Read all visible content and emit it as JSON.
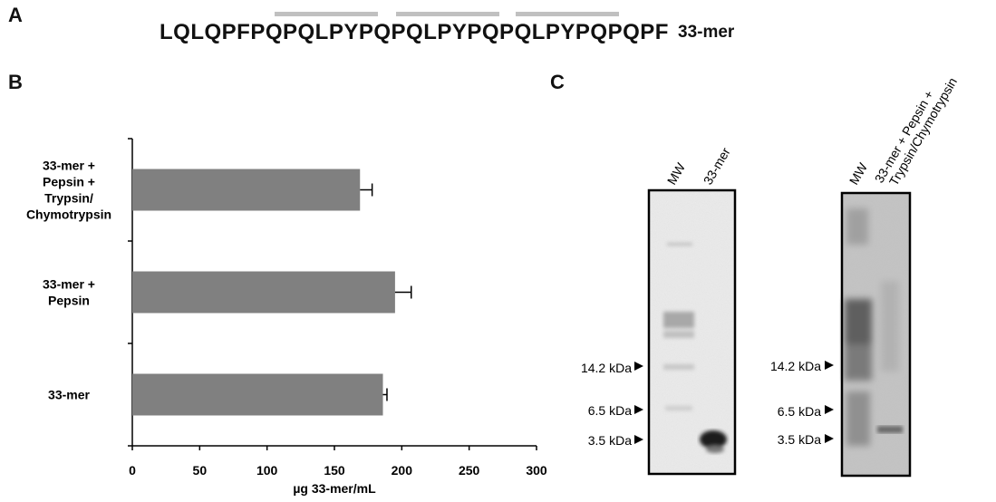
{
  "panel_a": {
    "letter": "A",
    "sequence": "LQLQPFPQPQLPYPQPQLPYPQPQLPYPQPQPF",
    "label": "33-mer"
  },
  "panel_b": {
    "letter": "B"
  },
  "panel_c": {
    "letter": "C",
    "gel1_lanes": [
      "MW",
      "33-mer"
    ],
    "gel2_lanes": [
      "MW",
      "33-mer + Pepsin +",
      "Trypsin/Chymotrypsin"
    ],
    "markers": [
      "14.2 kDa",
      "6.5 kDa",
      "3.5 kDa"
    ]
  },
  "chart_data": {
    "type": "bar",
    "orientation": "horizontal",
    "categories": [
      [
        "33-mer +",
        "Pepsin +",
        "Trypsin/",
        "Chymotrypsin"
      ],
      [
        "33-mer +",
        "Pepsin"
      ],
      [
        "33-mer"
      ]
    ],
    "values": [
      169,
      195,
      186
    ],
    "errors": [
      9,
      12,
      3
    ],
    "xlabel": "µg 33-mer/mL",
    "xlim": [
      0,
      300
    ],
    "xticks": [
      "0",
      "50",
      "100",
      "150",
      "200",
      "250",
      "300"
    ],
    "grid": false,
    "bar_color": "#808080"
  }
}
